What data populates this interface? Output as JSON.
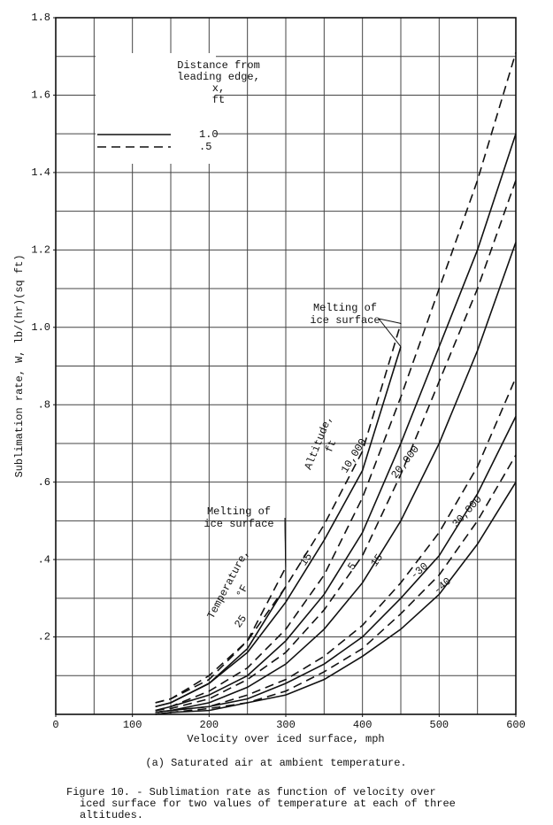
{
  "chart_data": {
    "type": "line",
    "xlabel": "Velocity over iced surface, mph",
    "ylabel": "Sublimation rate, W, lb/(hr)(sq ft)",
    "subtitle": "(a) Saturated air at ambient temperature.",
    "caption": [
      "Figure 10. - Sublimation rate as function of velocity over",
      "iced surface for two values of temperature at each of three",
      "altitudes."
    ],
    "xlim": [
      0,
      600
    ],
    "ylim": [
      0,
      1.8
    ],
    "xticks": [
      0,
      100,
      200,
      300,
      400,
      500,
      600
    ],
    "yticks": [
      {
        "value": 0.2,
        "label": ".2"
      },
      {
        "value": 0.4,
        "label": ".4"
      },
      {
        "value": 0.6,
        "label": ".6"
      },
      {
        "value": 0.8,
        "label": ".8"
      },
      {
        "value": 1,
        "label": "1.0"
      },
      1.2,
      1.4,
      1.6,
      1.8
    ],
    "grid": true,
    "xgrid": [
      50,
      100,
      150,
      200,
      250,
      300,
      350,
      400,
      450,
      500,
      550
    ],
    "ygrid": [
      0.1,
      0.2,
      0.3,
      0.4,
      0.5,
      0.6,
      0.7,
      0.8,
      0.9,
      1,
      1.1,
      1.2,
      1.3,
      1.4,
      1.5,
      1.6,
      1.7
    ],
    "legend": {
      "title": [
        "Distance from",
        "leading edge,",
        "x,",
        "ft"
      ],
      "entries": [
        {
          "label": "1.0",
          "style": "solid"
        },
        {
          "label": ".5",
          "style": "dashed"
        }
      ]
    },
    "x": [
      130,
      150,
      200,
      250,
      300,
      350,
      400,
      450,
      500,
      550,
      600
    ],
    "series": [
      {
        "color": "#111",
        "style": "dashed",
        "values": [
          0.03,
          0.04,
          0.09,
          0.19,
          0.38,
          null,
          null,
          null,
          null,
          null,
          null
        ]
      },
      {
        "color": "#111",
        "style": "solid",
        "values": [
          0.02,
          0.03,
          0.08,
          0.17,
          0.33,
          null,
          null,
          null,
          null,
          null,
          null
        ]
      },
      {
        "color": "#111",
        "style": "dashed",
        "values": [
          0.03,
          0.04,
          0.1,
          0.19,
          0.33,
          0.49,
          0.68,
          1.01,
          null,
          null,
          null
        ]
      },
      {
        "color": "#111",
        "style": "solid",
        "values": [
          0.02,
          0.03,
          0.08,
          0.16,
          0.29,
          0.45,
          0.63,
          0.95,
          null,
          null,
          null
        ]
      },
      {
        "color": "#111",
        "style": "dashed",
        "values": [
          0.01,
          0.02,
          0.06,
          0.12,
          0.22,
          0.36,
          0.56,
          0.82,
          1.1,
          1.38,
          1.71
        ]
      },
      {
        "color": "#111",
        "style": "solid",
        "values": [
          0.01,
          0.02,
          0.05,
          0.1,
          0.19,
          0.31,
          0.47,
          0.7,
          0.95,
          1.2,
          1.5
        ]
      },
      {
        "color": "#111",
        "style": "dashed",
        "values": [
          0.01,
          0.015,
          0.04,
          0.09,
          0.16,
          0.27,
          0.41,
          0.62,
          0.86,
          1.1,
          1.38
        ]
      },
      {
        "color": "#111",
        "style": "solid",
        "values": [
          0.005,
          0.01,
          0.03,
          0.07,
          0.13,
          0.22,
          0.34,
          0.5,
          0.7,
          0.94,
          1.22
        ]
      },
      {
        "color": "#111",
        "style": "dashed",
        "values": [
          0.005,
          0.01,
          0.02,
          0.05,
          0.09,
          0.15,
          0.23,
          0.34,
          0.47,
          0.64,
          0.87
        ]
      },
      {
        "color": "#111",
        "style": "solid",
        "values": [
          0.005,
          0.01,
          0.02,
          0.04,
          0.08,
          0.13,
          0.2,
          0.3,
          0.41,
          0.57,
          0.77
        ]
      },
      {
        "color": "#111",
        "style": "dashed",
        "values": [
          0,
          0.005,
          0.015,
          0.03,
          0.06,
          0.11,
          0.17,
          0.26,
          0.36,
          0.5,
          0.67
        ]
      },
      {
        "color": "#111",
        "style": "solid",
        "values": [
          0,
          0.005,
          0.01,
          0.03,
          0.05,
          0.09,
          0.15,
          0.22,
          0.31,
          0.44,
          0.6
        ]
      }
    ],
    "annotations": [
      "Melting of",
      "ice surface",
      "Melting of",
      "ice surface",
      "Altitude,",
      "ft",
      "10,000",
      "20,000",
      "30,000",
      "Temperature,",
      "°F",
      "15",
      "25",
      "5",
      "-15",
      "-30",
      "-40"
    ]
  }
}
